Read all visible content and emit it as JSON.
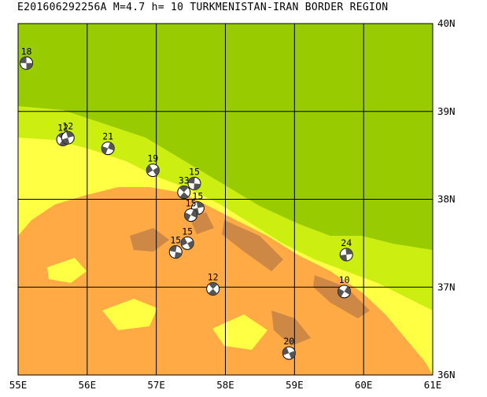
{
  "title": "E201606292256A M=4.7 h= 10 TURKMENISTAN-IRAN BORDER REGION",
  "axes": {
    "lon_labels": [
      "55E",
      "56E",
      "57E",
      "58E",
      "59E",
      "60E",
      "61E"
    ],
    "lat_labels": [
      "36N",
      "37N",
      "38N",
      "39N",
      "40N"
    ],
    "lon_range": [
      55,
      61
    ],
    "lat_range": [
      36,
      40
    ]
  },
  "colors": {
    "lowland": "#99cc00",
    "foothill": "#ccee11",
    "upland": "#ffff44",
    "highland": "#ffaa44",
    "peaks": "#cc8844",
    "grid": "#000000",
    "beachball_fill": "#555555"
  },
  "events": [
    {
      "depth": "18",
      "lon": 55.12,
      "lat": 39.55
    },
    {
      "depth": "12",
      "lon": 55.65,
      "lat": 38.68
    },
    {
      "depth": "12",
      "lon": 55.72,
      "lat": 38.7
    },
    {
      "depth": "21",
      "lon": 56.3,
      "lat": 38.58
    },
    {
      "depth": "19",
      "lon": 56.95,
      "lat": 38.33
    },
    {
      "depth": "15",
      "lon": 57.55,
      "lat": 38.18
    },
    {
      "depth": "33",
      "lon": 57.4,
      "lat": 38.08
    },
    {
      "depth": "15",
      "lon": 57.6,
      "lat": 37.9
    },
    {
      "depth": "15",
      "lon": 57.5,
      "lat": 37.82
    },
    {
      "depth": "15",
      "lon": 57.45,
      "lat": 37.5
    },
    {
      "depth": "15",
      "lon": 57.28,
      "lat": 37.4
    },
    {
      "depth": "12",
      "lon": 57.82,
      "lat": 36.98
    },
    {
      "depth": "24",
      "lon": 59.75,
      "lat": 37.37
    },
    {
      "depth": "10",
      "lon": 59.72,
      "lat": 36.95
    },
    {
      "depth": "20",
      "lon": 58.92,
      "lat": 36.25
    }
  ]
}
